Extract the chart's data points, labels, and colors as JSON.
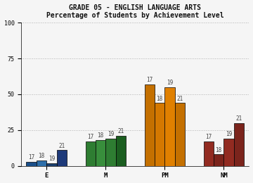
{
  "title_line1": "GRADE 05 - ENGLISH LANGUAGE ARTS",
  "title_line2": "Percentage of Students by Achievement Level",
  "categories": [
    "E",
    "M",
    "PM",
    "NM"
  ],
  "series_labels": [
    "17",
    "18",
    "19",
    "21"
  ],
  "values": {
    "E": [
      3,
      4,
      2,
      11
    ],
    "M": [
      17,
      18,
      19,
      21
    ],
    "PM": [
      57,
      44,
      55,
      44
    ],
    "NM": [
      17,
      8,
      19,
      30
    ]
  },
  "bar_text": {
    "E": [
      "17",
      "18",
      "19",
      "21"
    ],
    "M": [
      "17",
      "18",
      "19",
      "21"
    ],
    "PM": [
      "17",
      "18",
      "19",
      "21"
    ],
    "NM": [
      "17",
      "18",
      "19",
      "21"
    ]
  },
  "bar_colors": {
    "E": [
      "#1a4f8a",
      "#2e6faa",
      "#1a3f6e",
      "#1e3a7a"
    ],
    "M": [
      "#2e7d32",
      "#388e3c",
      "#2e7d32",
      "#1b5e20"
    ],
    "PM": [
      "#c47000",
      "#d47800",
      "#e08000",
      "#c47000"
    ],
    "NM": [
      "#922b21",
      "#7b241c",
      "#922b21",
      "#7b241c"
    ]
  },
  "ylim": [
    0,
    100
  ],
  "yticks": [
    0,
    25,
    50,
    75,
    100
  ],
  "background_color": "#f5f5f5",
  "plot_bg": "#f5f5f5",
  "title_fontsize": 7,
  "axis_fontsize": 6,
  "label_fontsize": 5.5,
  "xtick_fontsize": 6.5,
  "bar_width": 0.12,
  "group_centers": [
    0.25,
    0.95,
    1.65,
    2.35
  ]
}
